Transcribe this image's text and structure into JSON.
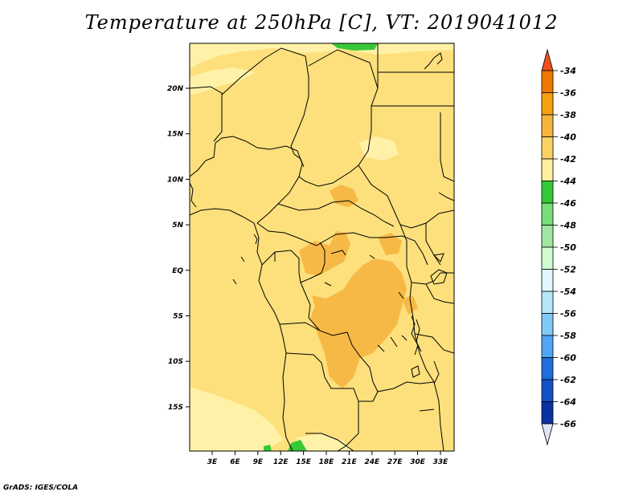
{
  "title": "Temperature at 250hPa [C], VT: 2019041012",
  "footer": "GrADS: IGES/COLA",
  "map": {
    "lat_labels": [
      "20N",
      "15N",
      "10N",
      "5N",
      "EQ",
      "5S",
      "10S",
      "15S"
    ],
    "lon_labels": [
      "3E",
      "6E",
      "9E",
      "12E",
      "15E",
      "18E",
      "21E",
      "24E",
      "27E",
      "30E",
      "33E"
    ]
  },
  "colorbar": {
    "levels": [
      "-34",
      "-36",
      "-38",
      "-40",
      "-42",
      "-44",
      "-46",
      "-48",
      "-50",
      "-52",
      "-54",
      "-56",
      "-58",
      "-60",
      "-62",
      "-64",
      "-66"
    ],
    "colors": [
      "#f0501e",
      "#f07800",
      "#f5a00f",
      "#f5b43c",
      "#fad264",
      "#fff0a0",
      "#37c837",
      "#78dc78",
      "#a0e6a0",
      "#d2fad2",
      "#e0f7ff",
      "#b4e6fa",
      "#82c8f5",
      "#50a5f5",
      "#1e6edc",
      "#1450c8",
      "#0a32a0",
      "#000a60",
      "#e0e4f8"
    ]
  }
}
